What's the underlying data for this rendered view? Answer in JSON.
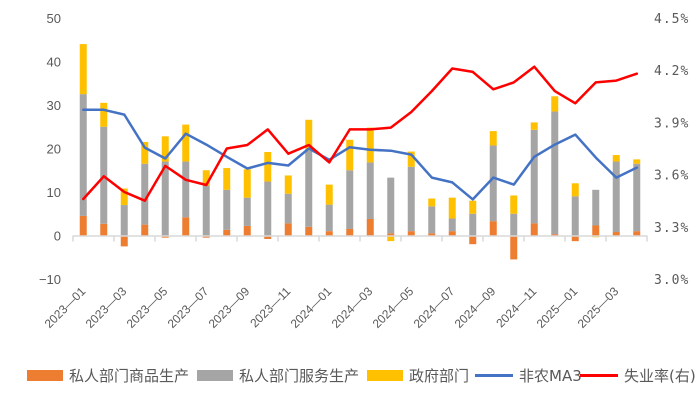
{
  "colors": {
    "goods": "#ED7D31",
    "services": "#A5A5A5",
    "government": "#FFC000",
    "nfp_ma3": "#4472C4",
    "unemployment": "#FF0000",
    "axis": "#D9D9D9",
    "text": "#595959"
  },
  "legend": {
    "items": [
      {
        "label": "私人部门商品生产",
        "type": "bar",
        "color": "#ED7D31"
      },
      {
        "label": "私人部门服务生产",
        "type": "bar",
        "color": "#A5A5A5"
      },
      {
        "label": "政府部门",
        "type": "bar",
        "color": "#FFC000"
      },
      {
        "label": "非农MA3",
        "type": "line",
        "color": "#4472C4"
      },
      {
        "label": "失业率(右)",
        "type": "line",
        "color": "#FF0000"
      }
    ]
  },
  "chart_data": {
    "type": "bar",
    "subtype": "stacked bar + line combo, dual axis",
    "title": "",
    "xlabel": "",
    "ylabel": "",
    "ylabel_right": "",
    "ylim": [
      -10,
      50
    ],
    "yticks": [
      -10,
      0,
      10,
      20,
      30,
      40,
      50
    ],
    "ylim_right": [
      3.0,
      4.5
    ],
    "yticks_right": [
      "3.0%",
      "3.3%",
      "3.6%",
      "3.9%",
      "4.2%",
      "4.5%"
    ],
    "grid": false,
    "legend_position": "bottom",
    "categories": [
      "2023-01",
      "2023-02",
      "2023-03",
      "2023-04",
      "2023-05",
      "2023-06",
      "2023-07",
      "2023-08",
      "2023-09",
      "2023-10",
      "2023-11",
      "2023-12",
      "2024-01",
      "2024-02",
      "2024-03",
      "2024-04",
      "2024-05",
      "2024-06",
      "2024-07",
      "2024-08",
      "2024-09",
      "2024-10",
      "2024-11",
      "2024-12",
      "2025-01",
      "2025-02",
      "2025-03",
      "2025-04"
    ],
    "xtick_labels": [
      "2023-01",
      "2023-03",
      "2023-05",
      "2023-07",
      "2023-09",
      "2023-11",
      "2024-01",
      "2024-03",
      "2024-05",
      "2024-07",
      "2024-09",
      "2024-11",
      "2025-01",
      "2025-03"
    ],
    "series": [
      {
        "name": "私人部门商品生产",
        "type": "bar",
        "axis": "left",
        "values": [
          4.5,
          2.7,
          -2.5,
          2.5,
          -0.5,
          4.2,
          -0.5,
          1.3,
          2.2,
          -0.8,
          2.8,
          2.0,
          1.0,
          1.5,
          3.8,
          0.5,
          1.0,
          0.5,
          1.0,
          -2.0,
          3.3,
          -5.5,
          2.8,
          0.3,
          -1.3,
          2.3,
          0.8,
          1.0
        ]
      },
      {
        "name": "私人部门服务生产",
        "type": "bar",
        "axis": "left",
        "values": [
          28.0,
          22.3,
          7.0,
          14.0,
          17.0,
          12.8,
          11.5,
          9.2,
          6.5,
          12.4,
          6.8,
          17.5,
          6.1,
          13.5,
          13.0,
          12.8,
          14.8,
          6.2,
          2.9,
          5.0,
          17.4,
          5.0,
          21.5,
          28.2,
          9.0,
          8.2,
          16.2,
          15.5
        ]
      },
      {
        "name": "政府部门",
        "type": "bar",
        "axis": "left",
        "values": [
          11.5,
          5.5,
          3.8,
          5.0,
          5.8,
          8.5,
          3.5,
          5.0,
          6.5,
          6.8,
          4.2,
          7.1,
          4.6,
          7.0,
          8.0,
          -1.3,
          3.5,
          1.8,
          4.8,
          3.0,
          3.3,
          4.2,
          1.7,
          3.5,
          3.0,
          -0.4,
          1.5,
          1.0
        ]
      },
      {
        "name": "非农MA3",
        "type": "line",
        "axis": "left",
        "values": [
          28.9,
          28.9,
          27.8,
          20.2,
          17.7,
          23.4,
          20.9,
          18.1,
          15.4,
          16.7,
          16.1,
          20.0,
          17.4,
          20.3,
          19.7,
          19.5,
          18.6,
          13.3,
          12.2,
          8.3,
          13.3,
          11.7,
          18.1,
          20.9,
          23.2,
          17.9,
          13.3,
          15.6
        ]
      },
      {
        "name": "失业率(右)",
        "type": "line",
        "axis": "right",
        "unit": "%",
        "values": [
          3.46,
          3.59,
          3.5,
          3.45,
          3.65,
          3.57,
          3.54,
          3.75,
          3.77,
          3.86,
          3.72,
          3.77,
          3.67,
          3.86,
          3.86,
          3.87,
          3.96,
          4.08,
          4.21,
          4.19,
          4.09,
          4.13,
          4.22,
          4.08,
          4.01,
          4.13,
          4.14,
          4.18
        ]
      }
    ]
  }
}
